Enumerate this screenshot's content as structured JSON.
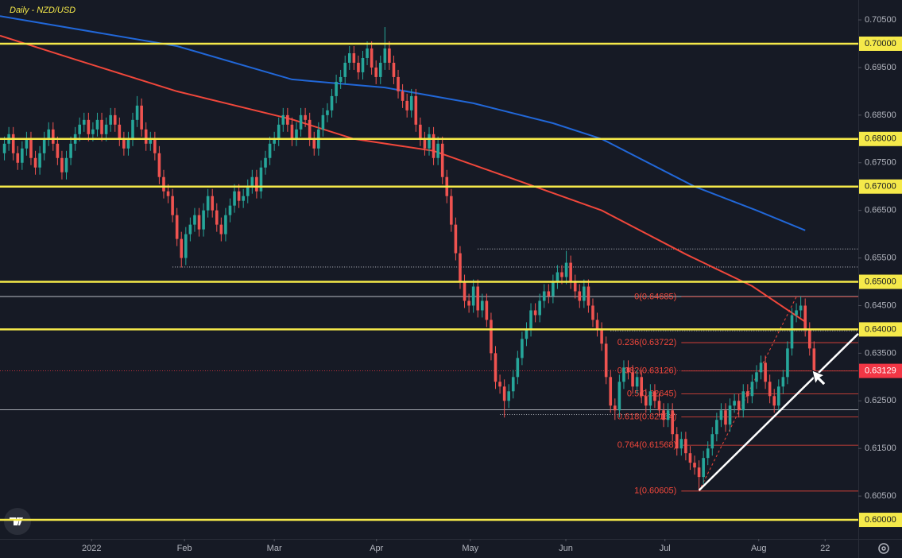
{
  "chart_data": {
    "type": "candlestick",
    "title": "Daily - NZD/USD",
    "title_color": "#f5e94a",
    "up_color": "#26a69a",
    "down_color": "#ef5350",
    "xlim": [
      0,
      194
    ],
    "ylim": [
      0.596,
      0.70918
    ],
    "xticks": [
      {
        "value": 20.7,
        "label": "2022"
      },
      {
        "value": 41.7,
        "label": "Feb"
      },
      {
        "value": 62,
        "label": "Mar"
      },
      {
        "value": 85.1,
        "label": "Apr"
      },
      {
        "value": 106.3,
        "label": "May"
      },
      {
        "value": 127.9,
        "label": "Jun"
      },
      {
        "value": 150.3,
        "label": "Jul"
      },
      {
        "value": 171.5,
        "label": "Aug"
      },
      {
        "value": 186.5,
        "label": "22"
      }
    ],
    "yticks": [
      {
        "value": 0.705,
        "label": "0.70500"
      },
      {
        "value": 0.695,
        "label": "0.69500"
      },
      {
        "value": 0.685,
        "label": "0.68500"
      },
      {
        "value": 0.675,
        "label": "0.67500"
      },
      {
        "value": 0.665,
        "label": "0.66500"
      },
      {
        "value": 0.655,
        "label": "0.65500"
      },
      {
        "value": 0.645,
        "label": "0.64500"
      },
      {
        "value": 0.635,
        "label": "0.63500"
      },
      {
        "value": 0.625,
        "label": "0.62500"
      },
      {
        "value": 0.615,
        "label": "0.61500"
      },
      {
        "value": 0.605,
        "label": "0.60500"
      }
    ],
    "open": [
      0.677,
      0.679,
      0.681,
      0.677,
      0.675,
      0.678,
      0.68,
      0.676,
      0.674,
      0.677,
      0.68,
      0.682,
      0.679,
      0.676,
      0.673,
      0.676,
      0.679,
      0.681,
      0.683,
      0.684,
      0.681,
      0.682,
      0.684,
      0.681,
      0.683,
      0.685,
      0.683,
      0.68,
      0.678,
      0.68,
      0.684,
      0.687,
      0.682,
      0.679,
      0.68,
      0.677,
      0.672,
      0.669,
      0.668,
      0.664,
      0.659,
      0.655,
      0.66,
      0.662,
      0.664,
      0.661,
      0.665,
      0.668,
      0.665,
      0.662,
      0.66,
      0.664,
      0.666,
      0.669,
      0.667,
      0.668,
      0.67,
      0.672,
      0.669,
      0.674,
      0.676,
      0.679,
      0.68,
      0.683,
      0.685,
      0.683,
      0.68,
      0.682,
      0.685,
      0.684,
      0.68,
      0.678,
      0.682,
      0.685,
      0.686,
      0.689,
      0.692,
      0.693,
      0.696,
      0.698,
      0.696,
      0.694,
      0.697,
      0.699,
      0.695,
      0.693,
      0.696,
      0.699,
      0.696,
      0.693,
      0.69,
      0.688,
      0.686,
      0.689,
      0.683,
      0.68,
      0.678,
      0.681,
      0.676,
      0.679,
      0.672,
      0.668,
      0.662,
      0.656,
      0.65,
      0.646,
      0.645,
      0.649,
      0.644,
      0.646,
      0.642,
      0.635,
      0.629,
      0.628,
      0.625,
      0.627,
      0.63,
      0.634,
      0.638,
      0.64,
      0.644,
      0.643,
      0.646,
      0.648,
      0.647,
      0.65,
      0.652,
      0.651,
      0.654,
      0.65,
      0.648,
      0.646,
      0.649,
      0.645,
      0.642,
      0.64,
      0.637,
      0.63,
      0.624,
      0.623,
      0.629,
      0.632,
      0.631,
      0.628,
      0.63,
      0.626,
      0.624,
      0.627,
      0.625,
      0.623,
      0.621,
      0.623,
      0.618,
      0.615,
      0.617,
      0.614,
      0.612,
      0.611,
      0.609,
      0.613,
      0.615,
      0.618,
      0.621,
      0.623,
      0.62,
      0.624,
      0.625,
      0.623,
      0.627,
      0.626,
      0.629,
      0.631,
      0.633,
      0.629,
      0.626,
      0.624,
      0.628,
      0.63,
      0.636,
      0.643,
      0.644,
      0.645,
      0.64,
      0.636
    ],
    "high": [
      0.6805,
      0.6825,
      0.6825,
      0.6785,
      0.6795,
      0.6815,
      0.6815,
      0.6775,
      0.6785,
      0.6815,
      0.6835,
      0.6835,
      0.6805,
      0.6775,
      0.6775,
      0.6805,
      0.6825,
      0.6845,
      0.6855,
      0.6855,
      0.6835,
      0.6855,
      0.6855,
      0.6845,
      0.6865,
      0.6865,
      0.6845,
      0.6815,
      0.6815,
      0.6855,
      0.689,
      0.6885,
      0.6835,
      0.6815,
      0.6815,
      0.6785,
      0.6735,
      0.6705,
      0.6695,
      0.6655,
      0.6605,
      0.6615,
      0.6635,
      0.6655,
      0.6655,
      0.6665,
      0.6695,
      0.6695,
      0.6665,
      0.6635,
      0.6655,
      0.6675,
      0.6705,
      0.6705,
      0.6695,
      0.6715,
      0.6735,
      0.6735,
      0.6755,
      0.6775,
      0.6805,
      0.6815,
      0.6845,
      0.6865,
      0.6865,
      0.6845,
      0.6835,
      0.6865,
      0.6865,
      0.6855,
      0.6815,
      0.6835,
      0.6865,
      0.6875,
      0.6905,
      0.6935,
      0.6945,
      0.6975,
      0.6995,
      0.6995,
      0.6975,
      0.6985,
      0.7005,
      0.7005,
      0.6965,
      0.6975,
      0.7035,
      0.7005,
      0.6975,
      0.6945,
      0.6915,
      0.6895,
      0.6905,
      0.6905,
      0.6845,
      0.6815,
      0.6825,
      0.6825,
      0.6805,
      0.6805,
      0.6735,
      0.6695,
      0.6635,
      0.6575,
      0.6515,
      0.6475,
      0.6505,
      0.6505,
      0.6475,
      0.6475,
      0.6435,
      0.6365,
      0.6305,
      0.6295,
      0.6285,
      0.6315,
      0.6355,
      0.6395,
      0.6415,
      0.6455,
      0.6455,
      0.6475,
      0.6495,
      0.6495,
      0.6515,
      0.6535,
      0.6535,
      0.6565,
      0.6555,
      0.6515,
      0.6495,
      0.6505,
      0.6505,
      0.6465,
      0.6435,
      0.6415,
      0.6385,
      0.6315,
      0.6255,
      0.6305,
      0.6335,
      0.6335,
      0.6325,
      0.6315,
      0.6315,
      0.6275,
      0.6285,
      0.6285,
      0.6265,
      0.6245,
      0.6245,
      0.6245,
      0.6195,
      0.6185,
      0.6185,
      0.6155,
      0.6135,
      0.6125,
      0.6145,
      0.6165,
      0.6195,
      0.6225,
      0.6245,
      0.6245,
      0.6255,
      0.6265,
      0.6265,
      0.6285,
      0.6285,
      0.6305,
      0.6325,
      0.6345,
      0.6345,
      0.6305,
      0.6275,
      0.6295,
      0.6315,
      0.6375,
      0.6445,
      0.6455,
      0.6469,
      0.6465,
      0.6415,
      0.6375
    ],
    "low": [
      0.6755,
      0.6775,
      0.6755,
      0.6735,
      0.6735,
      0.6765,
      0.6745,
      0.6725,
      0.6725,
      0.6755,
      0.6785,
      0.6775,
      0.6745,
      0.6715,
      0.6715,
      0.6745,
      0.6775,
      0.6795,
      0.6815,
      0.6795,
      0.6795,
      0.6805,
      0.6795,
      0.6795,
      0.6815,
      0.6815,
      0.6785,
      0.6765,
      0.6765,
      0.6785,
      0.6825,
      0.6805,
      0.6775,
      0.6775,
      0.6755,
      0.6705,
      0.6675,
      0.6665,
      0.6625,
      0.6575,
      0.653,
      0.6535,
      0.6585,
      0.6605,
      0.6595,
      0.6595,
      0.6635,
      0.6635,
      0.6605,
      0.6585,
      0.6585,
      0.6625,
      0.6645,
      0.6655,
      0.6655,
      0.6665,
      0.6685,
      0.6675,
      0.6675,
      0.6725,
      0.6745,
      0.6775,
      0.6785,
      0.6815,
      0.6815,
      0.6785,
      0.6785,
      0.6805,
      0.6825,
      0.6785,
      0.6765,
      0.6765,
      0.6805,
      0.6835,
      0.6845,
      0.6875,
      0.6905,
      0.6915,
      0.6945,
      0.6945,
      0.6925,
      0.6925,
      0.6955,
      0.6935,
      0.6915,
      0.6915,
      0.6945,
      0.6945,
      0.6915,
      0.6885,
      0.6865,
      0.6845,
      0.6845,
      0.6815,
      0.6785,
      0.6765,
      0.6765,
      0.6745,
      0.6745,
      0.6705,
      0.6665,
      0.6605,
      0.6545,
      0.6485,
      0.6445,
      0.6435,
      0.6435,
      0.6425,
      0.6425,
      0.6405,
      0.6335,
      0.6275,
      0.6265,
      0.6215,
      0.6235,
      0.6255,
      0.6285,
      0.6325,
      0.6365,
      0.6385,
      0.6415,
      0.6415,
      0.6445,
      0.6455,
      0.6455,
      0.6485,
      0.6495,
      0.6495,
      0.6485,
      0.6465,
      0.6445,
      0.6445,
      0.6435,
      0.6405,
      0.6385,
      0.6355,
      0.6285,
      0.6225,
      0.621,
      0.6215,
      0.6275,
      0.6295,
      0.6265,
      0.6265,
      0.6245,
      0.6225,
      0.6225,
      0.6235,
      0.6215,
      0.6195,
      0.6195,
      0.6165,
      0.6135,
      0.6135,
      0.6125,
      0.6105,
      0.6095,
      0.6062,
      0.6075,
      0.6115,
      0.6135,
      0.6165,
      0.6195,
      0.6185,
      0.6185,
      0.6225,
      0.6215,
      0.6215,
      0.6245,
      0.6245,
      0.6275,
      0.6295,
      0.6275,
      0.6245,
      0.6225,
      0.6225,
      0.6265,
      0.6285,
      0.6345,
      0.6415,
      0.6425,
      0.6385,
      0.6345,
      0.6298
    ],
    "close": [
      0.679,
      0.681,
      0.677,
      0.675,
      0.678,
      0.68,
      0.676,
      0.674,
      0.677,
      0.68,
      0.682,
      0.679,
      0.676,
      0.673,
      0.676,
      0.679,
      0.681,
      0.683,
      0.684,
      0.681,
      0.682,
      0.684,
      0.681,
      0.683,
      0.685,
      0.683,
      0.68,
      0.678,
      0.68,
      0.684,
      0.687,
      0.682,
      0.679,
      0.68,
      0.677,
      0.672,
      0.669,
      0.668,
      0.664,
      0.659,
      0.655,
      0.66,
      0.662,
      0.664,
      0.661,
      0.665,
      0.668,
      0.665,
      0.662,
      0.66,
      0.664,
      0.666,
      0.669,
      0.667,
      0.668,
      0.67,
      0.672,
      0.669,
      0.674,
      0.676,
      0.679,
      0.68,
      0.683,
      0.685,
      0.683,
      0.68,
      0.682,
      0.685,
      0.684,
      0.68,
      0.678,
      0.682,
      0.685,
      0.686,
      0.689,
      0.692,
      0.693,
      0.696,
      0.698,
      0.696,
      0.694,
      0.697,
      0.699,
      0.695,
      0.693,
      0.696,
      0.699,
      0.696,
      0.693,
      0.69,
      0.688,
      0.686,
      0.689,
      0.683,
      0.68,
      0.678,
      0.681,
      0.676,
      0.679,
      0.672,
      0.668,
      0.662,
      0.656,
      0.65,
      0.646,
      0.645,
      0.649,
      0.644,
      0.646,
      0.642,
      0.635,
      0.629,
      0.628,
      0.625,
      0.627,
      0.63,
      0.634,
      0.638,
      0.64,
      0.644,
      0.643,
      0.646,
      0.648,
      0.647,
      0.65,
      0.652,
      0.651,
      0.654,
      0.65,
      0.648,
      0.646,
      0.649,
      0.645,
      0.642,
      0.64,
      0.637,
      0.63,
      0.624,
      0.623,
      0.629,
      0.632,
      0.631,
      0.628,
      0.63,
      0.626,
      0.624,
      0.627,
      0.625,
      0.623,
      0.621,
      0.623,
      0.618,
      0.615,
      0.617,
      0.614,
      0.612,
      0.611,
      0.609,
      0.613,
      0.615,
      0.618,
      0.621,
      0.623,
      0.62,
      0.624,
      0.625,
      0.623,
      0.627,
      0.626,
      0.629,
      0.631,
      0.633,
      0.629,
      0.626,
      0.624,
      0.628,
      0.63,
      0.636,
      0.643,
      0.644,
      0.645,
      0.64,
      0.636,
      0.6313
    ],
    "moving_averages": [
      {
        "color": "#2167d8",
        "x": [
          0,
          40,
          66,
          87,
          107,
          125,
          136,
          157,
          171,
          182
        ],
        "values": [
          0.7058,
          0.6995,
          0.6925,
          0.6908,
          0.6875,
          0.6833,
          0.68,
          0.67,
          0.665,
          0.6608
        ]
      },
      {
        "color": "#f0473b",
        "x": [
          0,
          17,
          40,
          66,
          80,
          98,
          116,
          136,
          155,
          170,
          182
        ],
        "values": [
          0.7017,
          0.6967,
          0.69,
          0.6841,
          0.68,
          0.6775,
          0.6716,
          0.665,
          0.6558,
          0.6491,
          0.6416
        ]
      }
    ],
    "levels": {
      "color": "#f5e94a",
      "items": [
        {
          "value": 0.7,
          "label": "0.70000"
        },
        {
          "value": 0.68,
          "label": "0.68000"
        },
        {
          "value": 0.67,
          "label": "0.67000"
        },
        {
          "value": 0.65,
          "label": "0.65000"
        },
        {
          "value": 0.64,
          "label": "0.64000"
        },
        {
          "value": 0.6,
          "label": "0.60000"
        }
      ]
    },
    "reference_lines": [
      0.6469,
      0.6231
    ],
    "dotted_lines": [
      {
        "value": 0.6569,
        "x": [
          108,
          194
        ]
      },
      {
        "value": 0.6531,
        "x": [
          39,
          194
        ]
      },
      {
        "value": 0.6221,
        "x": [
          113,
          153
        ]
      },
      {
        "value": 0.6397,
        "x": [
          138,
          194
        ]
      }
    ],
    "fib": {
      "color": "#f0473b",
      "levels": [
        {
          "value": 0.64685,
          "label": "0(0.64685)"
        },
        {
          "value": 0.63722,
          "label": "0.236(0.63722)"
        },
        {
          "value": 0.63126,
          "label": "0.382(0.63126)"
        },
        {
          "value": 0.62645,
          "label": "0.5(0.62645)"
        },
        {
          "value": 0.62164,
          "label": "0.618(0.62164)"
        },
        {
          "value": 0.61568,
          "label": "0.764(0.61568)"
        },
        {
          "value": 0.60605,
          "label": "1(0.60605)"
        }
      ]
    },
    "trendline": {
      "color": "#ffffff",
      "x": [
        158,
        194
      ],
      "y": [
        0.6062,
        0.6391
      ]
    },
    "current_price": {
      "value": 0.63129,
      "label": "0.63129",
      "color": "#f23645"
    }
  }
}
